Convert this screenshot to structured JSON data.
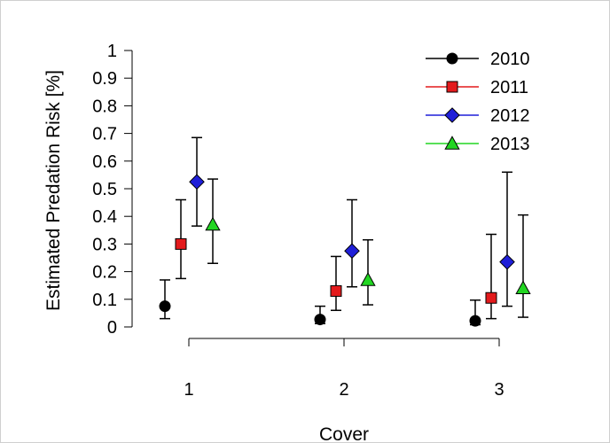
{
  "chart_data": {
    "type": "scatter",
    "title": "",
    "xlabel": "Cover",
    "ylabel": "Estimated Predation Risk [%]",
    "categories": [
      "1",
      "2",
      "3"
    ],
    "ylim": [
      0,
      1
    ],
    "yticks": [
      "0",
      "0.1",
      "0.2",
      "0.3",
      "0.4",
      "0.5",
      "0.6",
      "0.7",
      "0.8",
      "0.9",
      "1"
    ],
    "grid": false,
    "legend_position": "top-right",
    "series": [
      {
        "name": "2010",
        "color": "#000000",
        "marker": "circle",
        "values": [
          0.075,
          0.027,
          0.022
        ],
        "lower": [
          0.03,
          0.012,
          0.008
        ],
        "upper": [
          0.17,
          0.075,
          0.097
        ]
      },
      {
        "name": "2011",
        "color": "#e31a1c",
        "marker": "square",
        "values": [
          0.3,
          0.13,
          0.105
        ],
        "lower": [
          0.175,
          0.06,
          0.03
        ],
        "upper": [
          0.46,
          0.255,
          0.335
        ]
      },
      {
        "name": "2012",
        "color": "#1f1fd8",
        "marker": "diamond",
        "values": [
          0.525,
          0.275,
          0.235
        ],
        "lower": [
          0.365,
          0.145,
          0.075
        ],
        "upper": [
          0.685,
          0.46,
          0.56
        ]
      },
      {
        "name": "2013",
        "color": "#22d622",
        "marker": "triangle",
        "values": [
          0.37,
          0.17,
          0.14
        ],
        "lower": [
          0.23,
          0.08,
          0.035
        ],
        "upper": [
          0.535,
          0.315,
          0.405
        ]
      }
    ]
  }
}
